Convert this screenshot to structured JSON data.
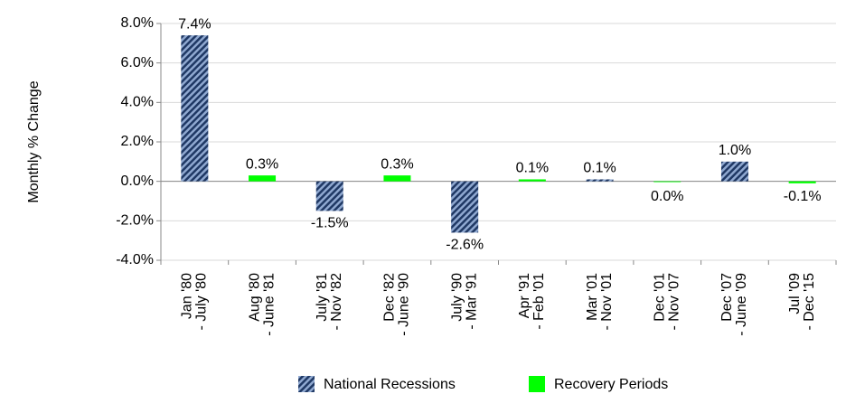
{
  "chart_data": {
    "type": "bar",
    "y_label": "Monthly % Change",
    "categories": [
      [
        "Jan '80",
        "- July '80"
      ],
      [
        "Aug '80",
        "- June '81"
      ],
      [
        "July '81",
        "- Nov '82"
      ],
      [
        "Dec '82",
        "- June '90"
      ],
      [
        "July '90",
        "- Mar '91"
      ],
      [
        "Apr '91",
        "- Feb '01"
      ],
      [
        "Mar '01",
        "- Nov '01"
      ],
      [
        "Dec '01",
        "- Nov '07"
      ],
      [
        "Dec '07",
        "- June '09"
      ],
      [
        "Jul '09",
        "- Dec '15"
      ]
    ],
    "series": [
      {
        "name": "National Recessions",
        "color": "#1f3864",
        "hatched": true,
        "values": [
          7.4,
          null,
          -1.5,
          null,
          -2.6,
          null,
          0.1,
          null,
          1.0,
          null
        ],
        "value_labels": [
          "7.4%",
          null,
          "-1.5%",
          null,
          "-2.6%",
          null,
          "0.1%",
          null,
          "1.0%",
          null
        ]
      },
      {
        "name": "Recovery Periods",
        "color": "#00ff00",
        "hatched": false,
        "values": [
          null,
          0.3,
          null,
          0.3,
          null,
          0.1,
          null,
          -0.04,
          null,
          -0.1
        ],
        "value_labels": [
          null,
          "0.3%",
          null,
          "0.3%",
          null,
          "0.1%",
          null,
          "0.0%",
          null,
          "-0.1%"
        ]
      }
    ],
    "ylim": [
      -4,
      8
    ],
    "yticks": [
      {
        "value": -4,
        "label": "-4.0%"
      },
      {
        "value": -2,
        "label": "-2.0%"
      },
      {
        "value": 0,
        "label": "0.0%"
      },
      {
        "value": 2,
        "label": "2.0%"
      },
      {
        "value": 4,
        "label": "4.0%"
      },
      {
        "value": 6,
        "label": "6.0%"
      },
      {
        "value": 8,
        "label": "8.0%"
      }
    ],
    "grid": true
  }
}
